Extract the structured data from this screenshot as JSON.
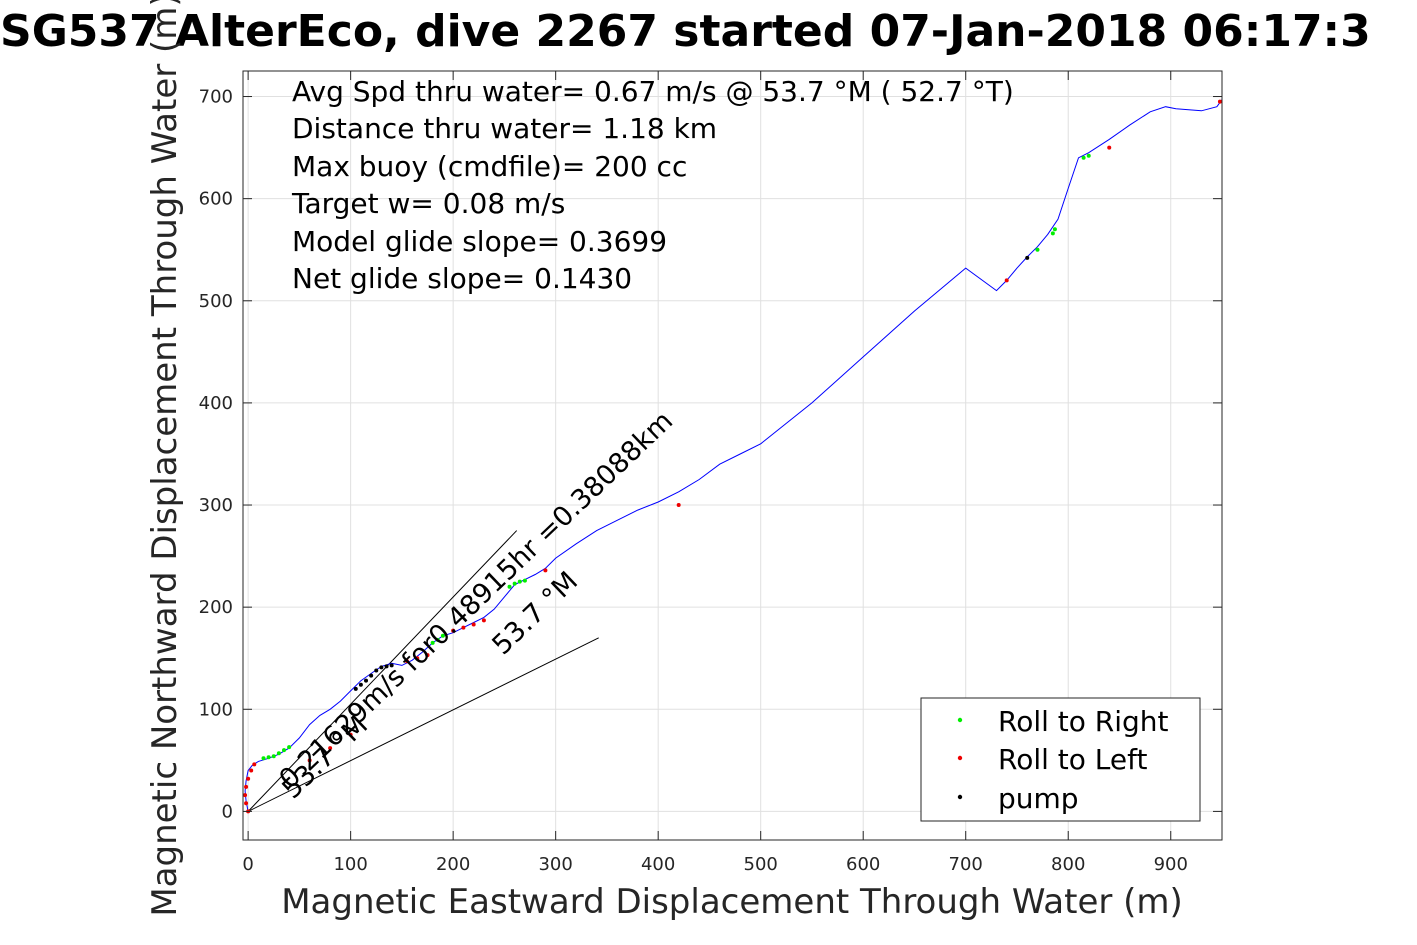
{
  "chart_data": {
    "type": "line",
    "title": "SG537 AlterEco, dive 2267 started 07-Jan-2018 06:17:3",
    "xlabel": "Magnetic Eastward Displacement Through Water (m)",
    "ylabel": "Magnetic Northward Displacement Through Water (m)",
    "xlim": [
      -5,
      950
    ],
    "ylim": [
      -28,
      725
    ],
    "xticks": [
      0,
      100,
      200,
      300,
      400,
      500,
      600,
      700,
      800,
      900
    ],
    "yticks": [
      0,
      100,
      200,
      300,
      400,
      500,
      600,
      700
    ],
    "grid": true,
    "info_lines": [
      "Avg Spd thru water=  0.67 m/s @  53.7 °M ( 52.7 °T)",
      "Distance thru water=  1.18 km",
      "Max buoy (cmdfile)= 200 cc",
      "Target w= 0.08 m/s",
      "Model glide slope= 0.3699",
      "Net glide slope= 0.1430"
    ],
    "annotations": [
      "0.21629m/s for0.48915hr =0.38088km",
      "53.7 °M",
      "53.7 °M"
    ],
    "path": {
      "name": "track",
      "color": "#0000ff",
      "x": [
        0,
        -2,
        -3,
        -2,
        0,
        4,
        10,
        20,
        30,
        40,
        50,
        60,
        70,
        80,
        90,
        100,
        110,
        120,
        130,
        140,
        150,
        160,
        170,
        180,
        190,
        200,
        210,
        220,
        230,
        240,
        250,
        260,
        270,
        280,
        290,
        300,
        320,
        340,
        360,
        380,
        400,
        420,
        440,
        460,
        480,
        500,
        550,
        600,
        650,
        700,
        730,
        740,
        750,
        760,
        770,
        780,
        790,
        800,
        810,
        820,
        840,
        860,
        880,
        895,
        905,
        930,
        945,
        950
      ],
      "y": [
        0,
        10,
        20,
        30,
        40,
        45,
        49,
        52,
        56,
        62,
        72,
        85,
        94,
        100,
        108,
        118,
        128,
        135,
        142,
        145,
        143,
        148,
        156,
        165,
        172,
        175,
        180,
        185,
        190,
        198,
        210,
        222,
        227,
        232,
        238,
        248,
        262,
        275,
        285,
        295,
        303,
        313,
        325,
        340,
        350,
        360,
        400,
        445,
        490,
        532,
        510,
        520,
        532,
        543,
        553,
        565,
        580,
        610,
        640,
        645,
        658,
        672,
        685,
        690,
        688,
        686,
        690,
        697
      ]
    },
    "guide_lines": [
      {
        "name": "heading-line-upper",
        "x": [
          0,
          262
        ],
        "y": [
          0,
          275
        ]
      },
      {
        "name": "heading-line-lower",
        "x": [
          0,
          342
        ],
        "y": [
          0,
          170
        ]
      }
    ],
    "series": [
      {
        "name": "Roll to Right",
        "color": "#00ee00",
        "x": [
          15,
          20,
          25,
          30,
          35,
          40,
          180,
          185,
          190,
          255,
          260,
          265,
          270,
          770,
          785,
          787,
          815,
          820
        ],
        "y": [
          52,
          53,
          54,
          57,
          60,
          63,
          165,
          168,
          172,
          220,
          223,
          225,
          226,
          550,
          566,
          570,
          640,
          642
        ]
      },
      {
        "name": "Roll to Left",
        "color": "#ee0000",
        "x": [
          0,
          -2,
          -3,
          -2,
          0,
          3,
          6,
          60,
          80,
          100,
          155,
          165,
          175,
          200,
          210,
          220,
          230,
          290,
          420,
          740,
          840,
          948
        ],
        "y": [
          0,
          8,
          16,
          24,
          32,
          40,
          46,
          50,
          62,
          75,
          147,
          150,
          153,
          177,
          180,
          183,
          187,
          236,
          300,
          520,
          650,
          695
        ]
      },
      {
        "name": "pump",
        "color": "#000000",
        "x": [
          105,
          110,
          115,
          120,
          125,
          130,
          135,
          140,
          760
        ],
        "y": [
          120,
          124,
          128,
          133,
          138,
          141,
          142,
          143,
          542
        ]
      }
    ],
    "legend": {
      "position": "bottom-right",
      "entries": [
        {
          "label": "Roll to Right",
          "color": "#00ee00"
        },
        {
          "label": "Roll to Left",
          "color": "#ee0000"
        },
        {
          "label": "pump",
          "color": "#000000"
        }
      ]
    }
  }
}
